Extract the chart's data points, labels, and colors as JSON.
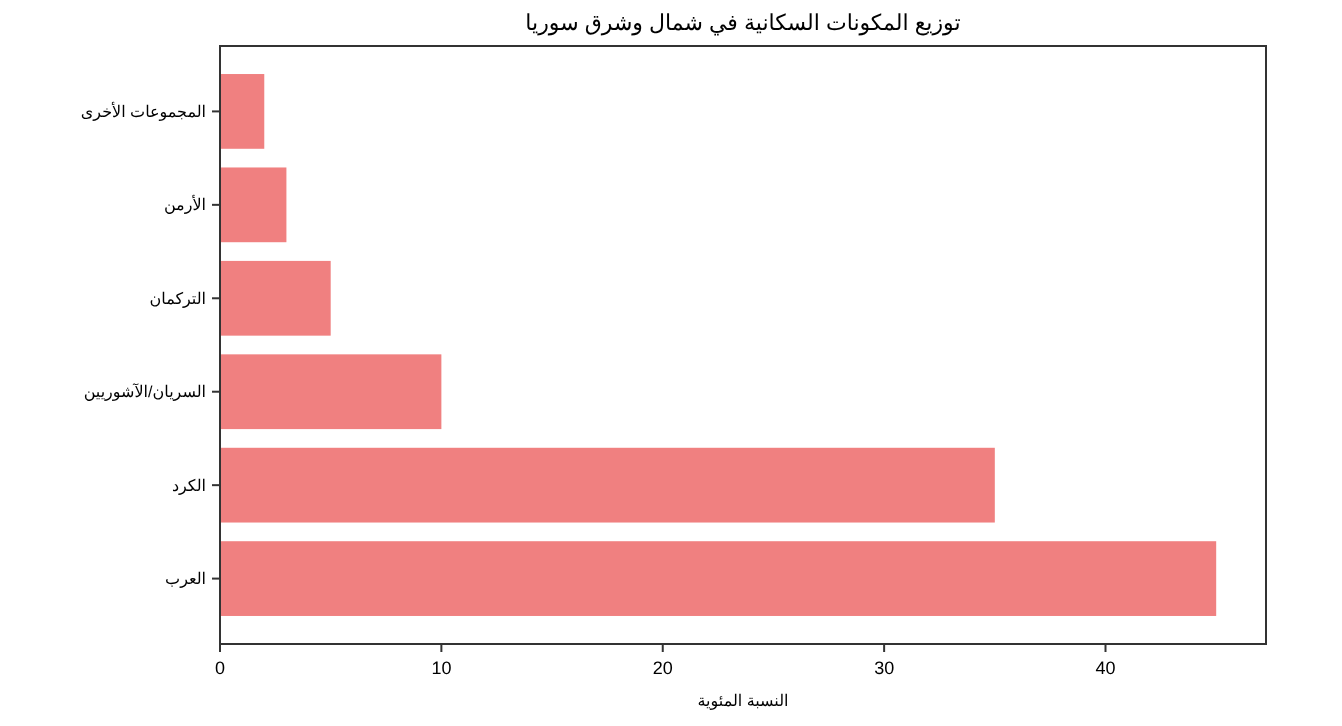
{
  "chart_data": {
    "type": "bar",
    "orientation": "horizontal",
    "title": "توزيع المكونات السكانية في شمال وشرق سوريا",
    "xlabel": "النسبة المئوية",
    "categories": [
      "المجموعات الأخرى",
      "الأرمن",
      "التركمان",
      "السريان/الآشوريين",
      "الكرد",
      "العرب"
    ],
    "values": [
      2,
      3,
      5,
      10,
      35,
      45
    ],
    "color": "#f08080",
    "xlim": [
      0,
      47.25
    ],
    "xticks": [
      0,
      10,
      20,
      30,
      40
    ],
    "grid": false
  }
}
